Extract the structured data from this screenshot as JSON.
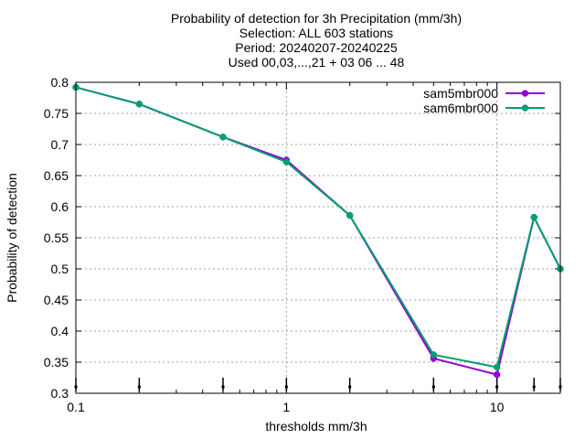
{
  "chart_data": {
    "type": "line",
    "title_lines": [
      "Probability of detection  for 3h Precipitation (mm/3h)",
      "Selection: ALL    603 stations",
      "Period: 20240207-20240225",
      "Used 00,03,...,21 + 03 06 ... 48"
    ],
    "xlabel": "thresholds mm/3h",
    "ylabel": "Probability of detection",
    "x_scale": "log",
    "xlim": [
      0.1,
      20
    ],
    "ylim": [
      0.3,
      0.8
    ],
    "x_ticks": [
      0.1,
      1,
      10
    ],
    "x_tick_labels": [
      "0.1",
      "1",
      "10"
    ],
    "y_ticks": [
      0.3,
      0.35,
      0.4,
      0.45,
      0.5,
      0.55,
      0.6,
      0.65,
      0.7,
      0.75,
      0.8
    ],
    "y_tick_labels": [
      "0.3",
      "0.35",
      "0.4",
      "0.45",
      "0.5",
      "0.55",
      "0.6",
      "0.65",
      "0.7",
      "0.75",
      "0.8"
    ],
    "grid": true,
    "legend_position": "top-right",
    "x": [
      0.1,
      0.2,
      0.5,
      1,
      2,
      5,
      10,
      15,
      20
    ],
    "series": [
      {
        "name": "sam5mbr000",
        "color": "#9400d3",
        "values": [
          0.792,
          0.765,
          0.712,
          0.675,
          0.586,
          0.356,
          0.33,
          0.583,
          0.5
        ]
      },
      {
        "name": "sam6mbr000",
        "color": "#009e73",
        "values": [
          0.792,
          0.765,
          0.712,
          0.672,
          0.586,
          0.362,
          0.342,
          0.583,
          0.5
        ]
      }
    ],
    "error_bar_x": [
      0.1,
      0.2,
      0.5,
      1,
      2,
      5,
      10,
      15,
      20
    ]
  }
}
